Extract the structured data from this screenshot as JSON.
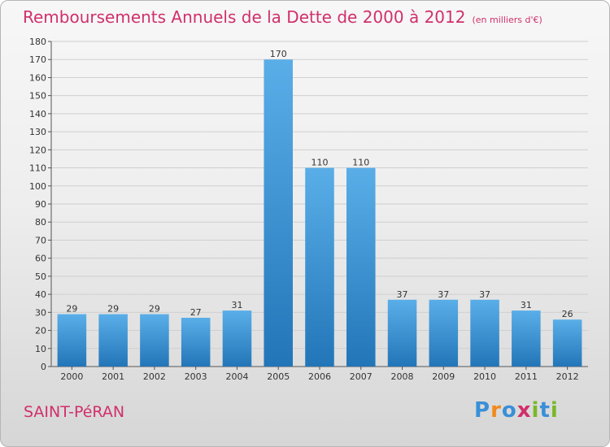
{
  "title": "Remboursements Annuels de la Dette de 2000 à 2012",
  "subtitle": "(en milliers d'€)",
  "town": "SAINT-PéRAN",
  "logo": {
    "text": "Proxiti",
    "letters": [
      {
        "char": "P",
        "color": "#3a8fd8"
      },
      {
        "char": "r",
        "color": "#f08a1c"
      },
      {
        "char": "o",
        "color": "#3a8fd8"
      },
      {
        "char": "x",
        "color": "#d0306a"
      },
      {
        "char": "i",
        "color": "#7ab828"
      },
      {
        "char": "t",
        "color": "#3a8fd8"
      },
      {
        "char": "i",
        "color": "#7ab828"
      }
    ]
  },
  "colors": {
    "title": "#d0306a",
    "bar_light": "#5aaee8",
    "bar_dark": "#2276b8",
    "grid": "#cfcfcf"
  },
  "chart_data": {
    "type": "bar",
    "title": "Remboursements Annuels de la Dette de 2000 à 2012",
    "subtitle": "(en milliers d'€)",
    "xlabel": "",
    "ylabel": "",
    "categories": [
      "2000",
      "2001",
      "2002",
      "2003",
      "2004",
      "2005",
      "2006",
      "2007",
      "2008",
      "2009",
      "2010",
      "2011",
      "2012"
    ],
    "values": [
      29,
      29,
      29,
      27,
      31,
      170,
      110,
      110,
      37,
      37,
      37,
      31,
      26
    ],
    "ylim": [
      0,
      180
    ],
    "yticks": [
      0,
      10,
      20,
      30,
      40,
      50,
      60,
      70,
      80,
      90,
      100,
      110,
      120,
      130,
      140,
      150,
      160,
      170,
      180
    ],
    "grid": true,
    "legend": "none"
  }
}
